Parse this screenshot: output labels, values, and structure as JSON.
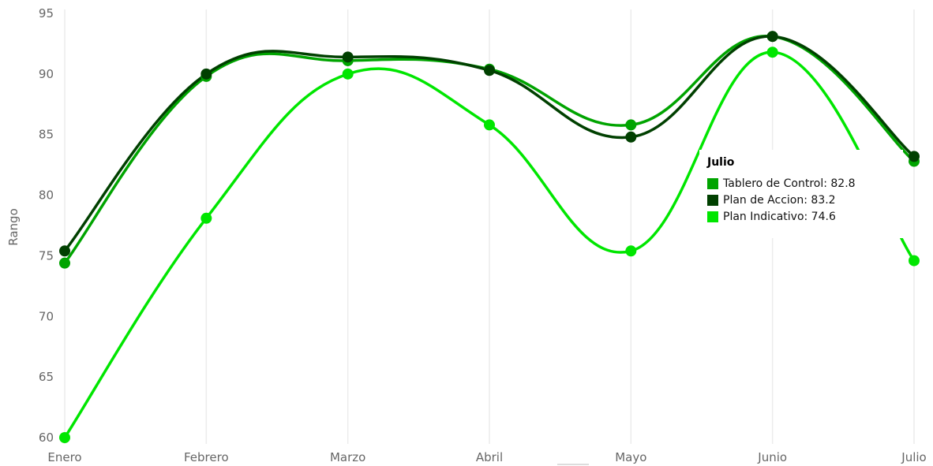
{
  "chart_data": {
    "type": "line",
    "categories": [
      "Enero",
      "Febrero",
      "Marzo",
      "Abril",
      "Mayo",
      "Junio",
      "Julio"
    ],
    "ylabel": "Rango",
    "xlabel": "",
    "ylim": [
      60,
      95
    ],
    "yticks": [
      60,
      65,
      70,
      75,
      80,
      85,
      90,
      95
    ],
    "grid": "vertical",
    "smooth": true,
    "series": [
      {
        "name": "Tablero de Control",
        "color": "#00a400",
        "values": [
          74.4,
          89.8,
          91.1,
          90.4,
          85.8,
          93.1,
          82.8
        ]
      },
      {
        "name": "Plan de Accion",
        "color": "#004000",
        "values": [
          75.4,
          90.0,
          91.4,
          90.3,
          84.8,
          93.1,
          83.2
        ]
      },
      {
        "name": "Plan Indicativo",
        "color": "#00e600",
        "values": [
          60.0,
          78.1,
          90.0,
          85.8,
          75.4,
          91.8,
          74.6
        ]
      }
    ]
  },
  "tooltip": {
    "title": "Julio",
    "rows": [
      {
        "text": "Tablero de Control: 82.8",
        "color": "#00a400"
      },
      {
        "text": "Plan de Accion: 83.2",
        "color": "#004000"
      },
      {
        "text": "Plan Indicativo: 74.6",
        "color": "#00e600"
      }
    ]
  }
}
